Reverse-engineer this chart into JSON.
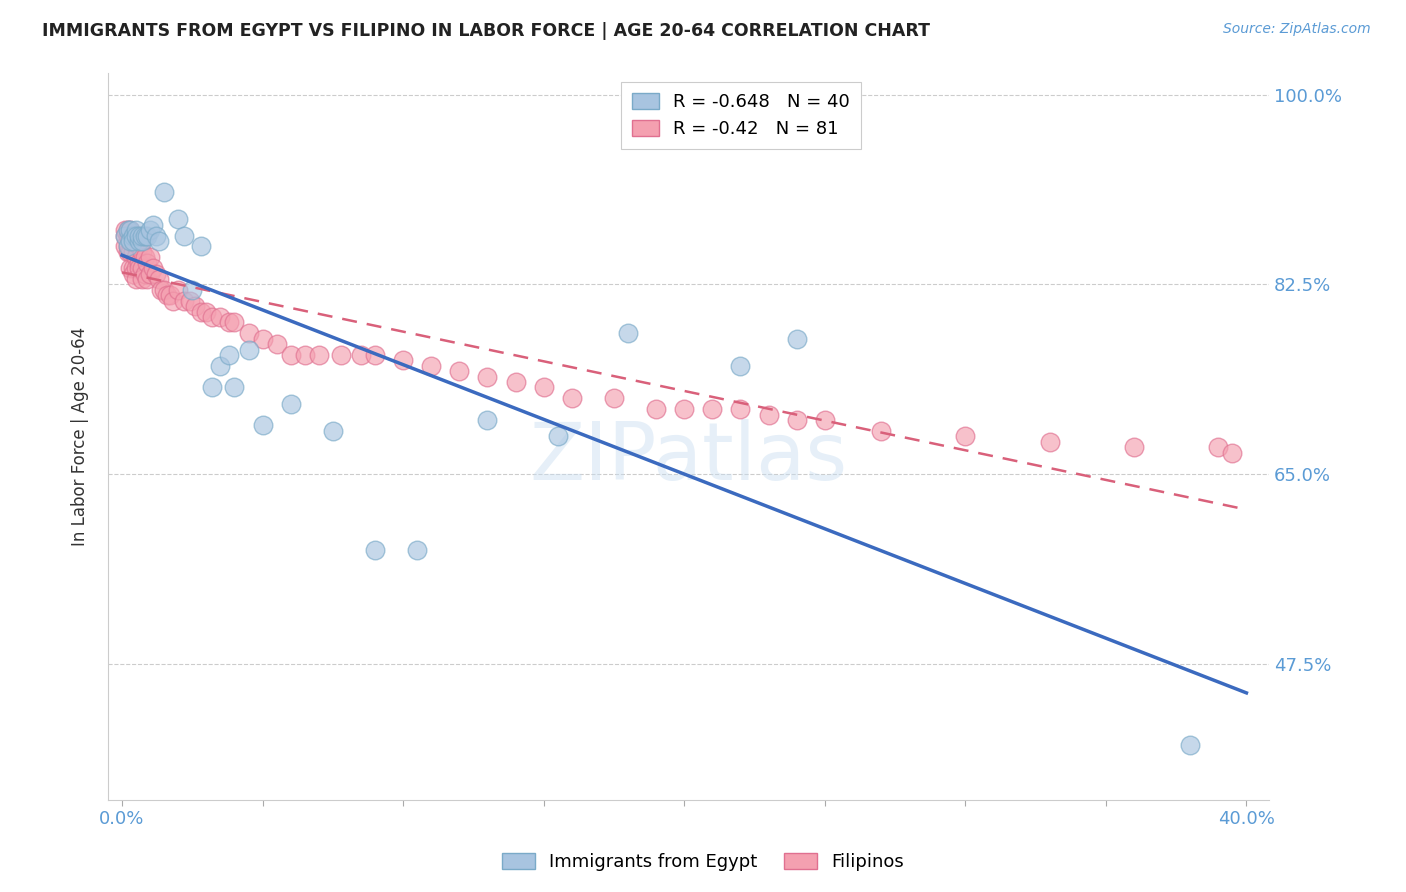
{
  "title": "IMMIGRANTS FROM EGYPT VS FILIPINO IN LABOR FORCE | AGE 20-64 CORRELATION CHART",
  "source": "Source: ZipAtlas.com",
  "ylabel": "In Labor Force | Age 20-64",
  "egypt_color": "#a8c4e0",
  "egypt_edge": "#7aaac8",
  "filipino_color": "#f4a0b0",
  "filipino_edge": "#e07090",
  "egypt_R": -0.648,
  "egypt_N": 40,
  "filipino_R": -0.42,
  "filipino_N": 81,
  "egypt_line_color": "#3b6abf",
  "filipino_line_color": "#d9607a",
  "legend_egypt_label": "Immigrants from Egypt",
  "legend_filipino_label": "Filipinos",
  "egypt_x": [
    0.001,
    0.002,
    0.002,
    0.003,
    0.003,
    0.004,
    0.004,
    0.005,
    0.005,
    0.006,
    0.006,
    0.007,
    0.007,
    0.008,
    0.009,
    0.01,
    0.011,
    0.012,
    0.013,
    0.015,
    0.02,
    0.022,
    0.025,
    0.028,
    0.032,
    0.035,
    0.038,
    0.04,
    0.045,
    0.05,
    0.06,
    0.075,
    0.09,
    0.105,
    0.13,
    0.155,
    0.18,
    0.22,
    0.24,
    0.38
  ],
  "egypt_y": [
    0.87,
    0.875,
    0.86,
    0.875,
    0.865,
    0.87,
    0.865,
    0.875,
    0.87,
    0.865,
    0.87,
    0.865,
    0.87,
    0.87,
    0.87,
    0.875,
    0.88,
    0.87,
    0.865,
    0.91,
    0.885,
    0.87,
    0.82,
    0.86,
    0.73,
    0.75,
    0.76,
    0.73,
    0.765,
    0.695,
    0.715,
    0.69,
    0.58,
    0.58,
    0.7,
    0.685,
    0.78,
    0.75,
    0.775,
    0.4
  ],
  "filipino_x": [
    0.001,
    0.001,
    0.001,
    0.002,
    0.002,
    0.002,
    0.002,
    0.003,
    0.003,
    0.003,
    0.003,
    0.003,
    0.004,
    0.004,
    0.004,
    0.004,
    0.005,
    0.005,
    0.005,
    0.005,
    0.005,
    0.006,
    0.006,
    0.006,
    0.007,
    0.007,
    0.007,
    0.008,
    0.008,
    0.009,
    0.009,
    0.01,
    0.01,
    0.011,
    0.012,
    0.013,
    0.014,
    0.015,
    0.016,
    0.017,
    0.018,
    0.02,
    0.022,
    0.024,
    0.026,
    0.028,
    0.03,
    0.032,
    0.035,
    0.038,
    0.04,
    0.045,
    0.05,
    0.055,
    0.06,
    0.065,
    0.07,
    0.078,
    0.085,
    0.09,
    0.1,
    0.11,
    0.12,
    0.13,
    0.14,
    0.15,
    0.16,
    0.175,
    0.19,
    0.2,
    0.21,
    0.22,
    0.23,
    0.24,
    0.25,
    0.27,
    0.3,
    0.33,
    0.36,
    0.39,
    0.395
  ],
  "filipino_y": [
    0.87,
    0.86,
    0.875,
    0.87,
    0.875,
    0.86,
    0.855,
    0.87,
    0.865,
    0.875,
    0.855,
    0.84,
    0.87,
    0.855,
    0.84,
    0.835,
    0.87,
    0.86,
    0.85,
    0.84,
    0.83,
    0.86,
    0.845,
    0.84,
    0.855,
    0.84,
    0.83,
    0.85,
    0.835,
    0.845,
    0.83,
    0.85,
    0.835,
    0.84,
    0.835,
    0.83,
    0.82,
    0.82,
    0.815,
    0.815,
    0.81,
    0.82,
    0.81,
    0.81,
    0.805,
    0.8,
    0.8,
    0.795,
    0.795,
    0.79,
    0.79,
    0.78,
    0.775,
    0.77,
    0.76,
    0.76,
    0.76,
    0.76,
    0.76,
    0.76,
    0.755,
    0.75,
    0.745,
    0.74,
    0.735,
    0.73,
    0.72,
    0.72,
    0.71,
    0.71,
    0.71,
    0.71,
    0.705,
    0.7,
    0.7,
    0.69,
    0.685,
    0.68,
    0.675,
    0.675,
    0.67
  ],
  "ytick_positions": [
    1.0,
    0.825,
    0.65,
    0.475
  ],
  "yticklabels_right": [
    "100.0%",
    "82.5%",
    "65.0%",
    "47.5%"
  ],
  "xtick_positions": [
    0.0,
    0.05,
    0.1,
    0.15,
    0.2,
    0.25,
    0.3,
    0.35,
    0.4
  ],
  "xticklabels": [
    "0.0%",
    "",
    "",
    "",
    "",
    "",
    "",
    "",
    "40.0%"
  ],
  "xlim": [
    -0.005,
    0.408
  ],
  "ylim": [
    0.35,
    1.02
  ]
}
